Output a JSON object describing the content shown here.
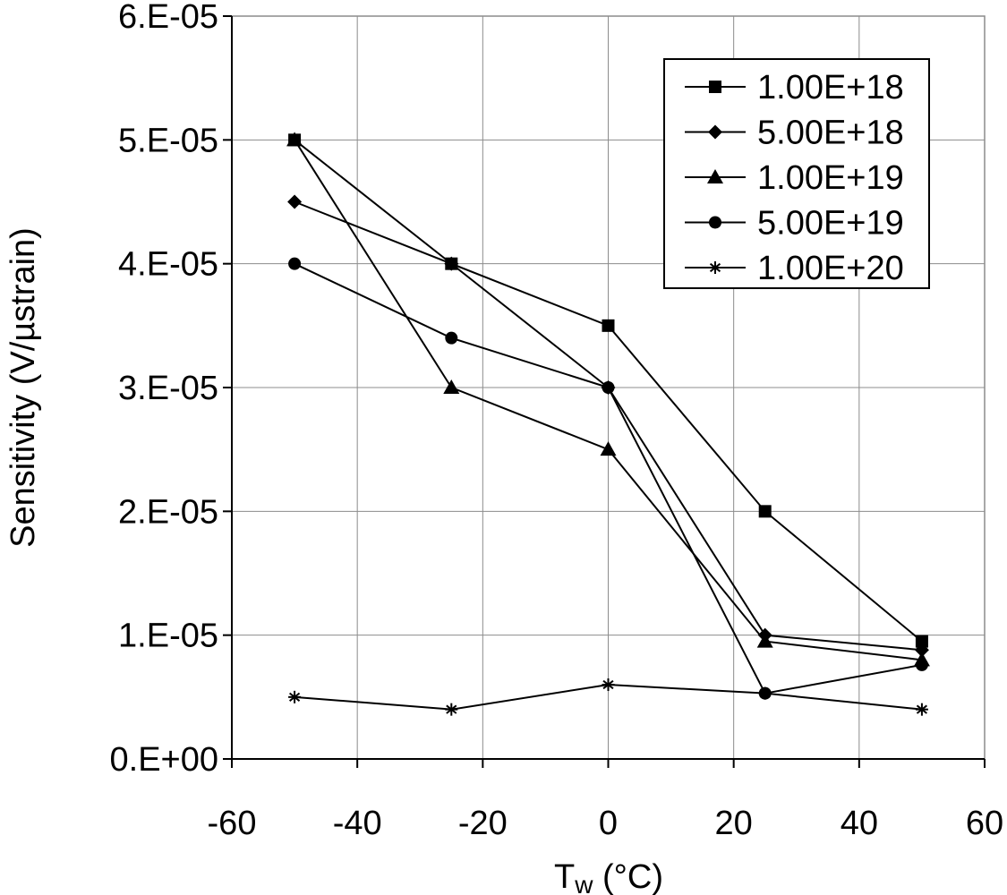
{
  "chart_data": {
    "type": "line",
    "title": "",
    "xlabel_main": "T",
    "xlabel_sub": "w",
    "xlabel_unit": " (°C)",
    "ylabel": "Sensitivity (V/µstrain)",
    "xlim": [
      -60,
      60
    ],
    "ylim": [
      0,
      6e-05
    ],
    "x_ticks": [
      -60,
      -40,
      -20,
      0,
      20,
      40,
      60
    ],
    "x_tick_labels": [
      "-60",
      "-40",
      "-20",
      "0",
      "20",
      "40",
      "60"
    ],
    "y_ticks": [
      0,
      1e-05,
      2e-05,
      3e-05,
      4e-05,
      5e-05,
      6e-05
    ],
    "y_tick_labels": [
      "0.E+00",
      "1.E-05",
      "2.E-05",
      "3.E-05",
      "4.E-05",
      "5.E-05",
      "6.E-05"
    ],
    "grid": true,
    "legend_position": "top-right",
    "series": [
      {
        "name": "1.00E+18",
        "marker": "square",
        "x": [
          -50,
          -25,
          0,
          25,
          50
        ],
        "values": [
          5e-05,
          4e-05,
          3.5e-05,
          2e-05,
          9.5e-06
        ]
      },
      {
        "name": "5.00E+18",
        "marker": "diamond",
        "x": [
          -50,
          -25,
          0,
          25,
          50
        ],
        "values": [
          4.5e-05,
          4e-05,
          3e-05,
          1e-05,
          8.8e-06
        ]
      },
      {
        "name": "1.00E+19",
        "marker": "triangle",
        "x": [
          -50,
          -25,
          0,
          25,
          50
        ],
        "values": [
          5e-05,
          3e-05,
          2.5e-05,
          9.5e-06,
          8e-06
        ]
      },
      {
        "name": "5.00E+19",
        "marker": "circle",
        "x": [
          -50,
          -25,
          0,
          25,
          50
        ],
        "values": [
          4e-05,
          3.4e-05,
          3e-05,
          5.3e-06,
          7.6e-06
        ]
      },
      {
        "name": "1.00E+20",
        "marker": "star",
        "x": [
          -50,
          -25,
          0,
          25,
          50
        ],
        "values": [
          5e-06,
          4e-06,
          6e-06,
          5.3e-06,
          4e-06
        ]
      }
    ]
  }
}
